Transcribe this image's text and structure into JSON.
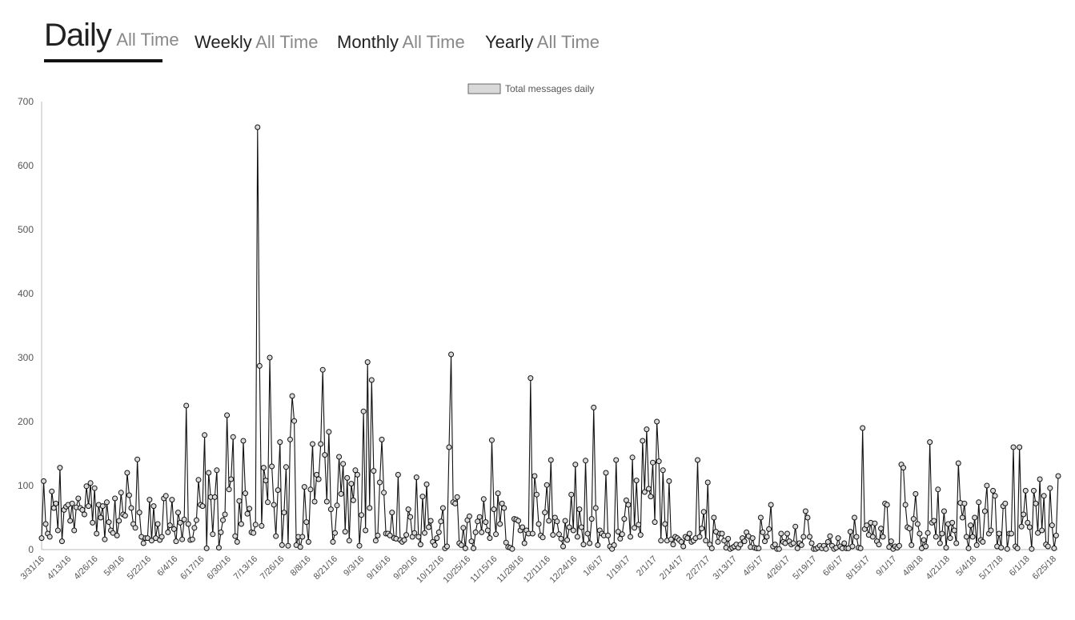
{
  "tabs": [
    {
      "main": "Daily",
      "sub": "All Time",
      "active": true
    },
    {
      "main": "Weekly",
      "sub": "All Time",
      "active": false
    },
    {
      "main": "Monthly",
      "sub": "All Time",
      "active": false
    },
    {
      "main": "Yearly",
      "sub": "All Time",
      "active": false
    }
  ],
  "colors": {
    "line": "#111111",
    "point_fill": "#d9d9d9",
    "axis": "#bbbbbb",
    "text": "#555555"
  },
  "chart_data": {
    "type": "line",
    "title": "",
    "xlabel": "",
    "ylabel": "",
    "legend": {
      "label": "Total messages daily",
      "placement": "top-center"
    },
    "grid": false,
    "ylim": [
      0,
      700
    ],
    "yticks": [
      0,
      100,
      200,
      300,
      400,
      500,
      600,
      700
    ],
    "xtick_labels": [
      "3/31/16",
      "4/13/16",
      "4/26/16",
      "5/9/16",
      "5/22/16",
      "6/4/16",
      "6/17/16",
      "6/30/16",
      "7/13/16",
      "7/26/16",
      "8/8/16",
      "8/21/16",
      "9/3/16",
      "9/16/16",
      "9/29/16",
      "10/12/16",
      "10/25/16",
      "11/15/16",
      "11/28/16",
      "12/11/16",
      "12/24/16",
      "1/6/17",
      "1/19/17",
      "2/1/17",
      "2/14/17",
      "2/27/17",
      "3/13/17",
      "4/5/17",
      "4/26/17",
      "5/19/17",
      "6/6/17",
      "8/15/17",
      "9/1/17",
      "4/8/18",
      "4/21/18",
      "5/4/18",
      "5/17/18",
      "6/1/18",
      "6/25/18"
    ],
    "series": [
      {
        "name": "Total messages daily",
        "values": [
          18,
          107,
          40,
          25,
          20,
          91,
          65,
          72,
          30,
          128,
          13,
          62,
          67,
          70,
          45,
          72,
          30,
          66,
          80,
          65,
          62,
          55,
          99,
          68,
          104,
          42,
          96,
          25,
          70,
          50,
          68,
          16,
          74,
          43,
          30,
          26,
          80,
          22,
          45,
          89,
          55,
          53,
          120,
          85,
          65,
          40,
          34,
          141,
          58,
          20,
          10,
          18,
          18,
          78,
          14,
          68,
          18,
          40,
          15,
          20,
          80,
          84,
          27,
          38,
          78,
          32,
          13,
          58,
          42,
          16,
          47,
          225,
          40,
          15,
          16,
          34,
          46,
          109,
          70,
          68,
          179,
          2,
          120,
          82,
          24,
          82,
          124,
          3,
          27,
          46,
          55,
          210,
          94,
          110,
          176,
          21,
          12,
          76,
          40,
          170,
          88,
          56,
          64,
          27,
          26,
          39,
          660,
          287,
          37,
          128,
          108,
          74,
          300,
          130,
          70,
          21,
          93,
          168,
          7,
          58,
          129,
          6,
          172,
          240,
          201,
          7,
          20,
          4,
          20,
          98,
          43,
          12,
          94,
          165,
          75,
          117,
          110,
          165,
          281,
          148,
          75,
          184,
          63,
          12,
          26,
          69,
          145,
          87,
          134,
          28,
          112,
          14,
          103,
          77,
          124,
          117,
          6,
          54,
          216,
          30,
          293,
          65,
          265,
          123,
          14,
          22,
          105,
          172,
          89,
          25,
          25,
          22,
          58,
          18,
          17,
          117,
          15,
          12,
          15,
          23,
          63,
          51,
          20,
          26,
          113,
          20,
          8,
          83,
          26,
          102,
          35,
          45,
          12,
          7,
          18,
          27,
          44,
          65,
          2,
          5,
          160,
          305,
          74,
          72,
          82,
          10,
          7,
          34,
          2,
          46,
          52,
          13,
          2,
          27,
          44,
          51,
          27,
          79,
          43,
          30,
          18,
          171,
          63,
          24,
          88,
          40,
          72,
          65,
          11,
          4,
          3,
          1,
          48,
          47,
          45,
          30,
          35,
          10,
          30,
          25,
          268,
          25,
          115,
          86,
          40,
          22,
          19,
          58,
          101,
          45,
          140,
          23,
          50,
          44,
          24,
          17,
          5,
          45,
          15,
          35,
          86,
          30,
          133,
          20,
          63,
          35,
          8,
          139,
          25,
          10,
          48,
          222,
          65,
          7,
          30,
          25,
          22,
          120,
          22,
          5,
          1,
          7,
          140,
          28,
          17,
          24,
          48,
          77,
          70,
          20,
          144,
          34,
          108,
          39,
          23,
          170,
          90,
          188,
          95,
          83,
          136,
          43,
          200,
          138,
          14,
          124,
          40,
          14,
          107,
          16,
          8,
          20,
          18,
          15,
          12,
          5,
          20,
          18,
          25,
          12,
          14,
          18,
          140,
          20,
          33,
          59,
          14,
          105,
          8,
          2,
          50,
          28,
          12,
          25,
          25,
          14,
          3,
          17,
          1,
          3,
          5,
          8,
          3,
          8,
          18,
          13,
          27,
          21,
          4,
          18,
          3,
          2,
          2,
          50,
          27,
          13,
          20,
          32,
          70,
          5,
          8,
          1,
          1,
          25,
          12,
          10,
          25,
          13,
          8,
          10,
          36,
          2,
          10,
          7,
          20,
          60,
          50,
          20,
          10,
          1,
          1,
          3,
          6,
          2,
          6,
          1,
          12,
          21,
          6,
          1,
          3,
          18,
          5,
          2,
          10,
          2,
          2,
          28,
          5,
          50,
          20,
          3,
          2,
          190,
          32,
          38,
          23,
          42,
          20,
          41,
          13,
          8,
          33,
          20,
          72,
          70,
          4,
          13,
          1,
          5,
          3,
          6,
          133,
          128,
          70,
          35,
          33,
          7,
          48,
          87,
          40,
          25,
          2,
          15,
          5,
          26,
          168,
          42,
          45,
          20,
          94,
          10,
          25,
          60,
          3,
          40,
          18,
          42,
          30,
          10,
          135,
          73,
          50,
          72,
          20,
          2,
          38,
          20,
          50,
          7,
          74,
          15,
          12,
          60,
          100,
          25,
          30,
          92,
          84,
          5,
          25,
          3,
          68,
          72,
          1,
          25,
          25,
          160,
          5,
          2,
          160,
          36,
          55,
          92,
          42,
          35,
          1,
          92,
          72,
          26,
          110,
          30,
          84,
          8,
          5,
          96,
          38,
          2,
          22,
          115
        ]
      }
    ]
  }
}
